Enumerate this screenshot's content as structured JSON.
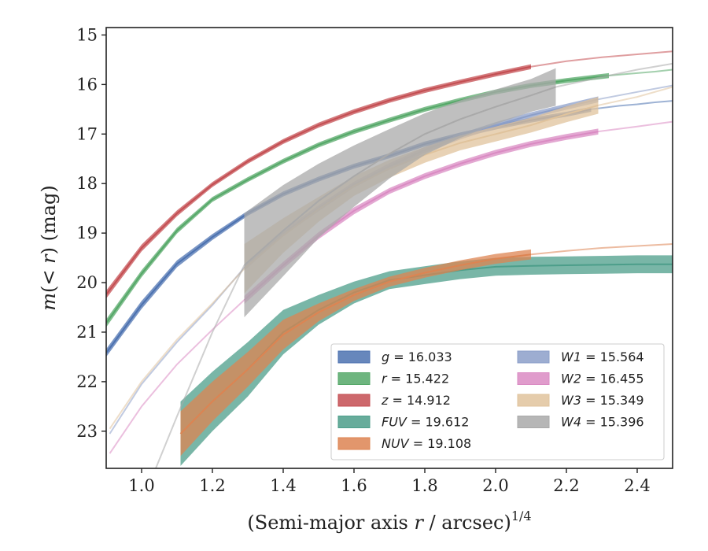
{
  "chart_data": {
    "type": "line",
    "xlabel": "(Semi-major axis r / arcsec)",
    "xlabel_parts": {
      "prefix": "(Semi-major axis ",
      "var": "r",
      "suffix": " / arcsec)",
      "sup": "1/4"
    },
    "ylabel": "m(< r) (mag)",
    "ylabel_parts": {
      "m": "m",
      "paren_open": "(",
      "lt": "< ",
      "r": "r",
      "paren_close": ")",
      "unit": " (mag)"
    },
    "xlim": [
      0.9,
      2.5
    ],
    "ylim": [
      23.75,
      14.85
    ],
    "y_inverted": true,
    "grid": false,
    "legend_placement": "lower-right",
    "x_ticks": [
      "1.0",
      "1.2",
      "1.4",
      "1.6",
      "1.8",
      "2.0",
      "2.2",
      "2.4"
    ],
    "x_tick_values": [
      1.0,
      1.2,
      1.4,
      1.6,
      1.8,
      2.0,
      2.2,
      2.4
    ],
    "y_ticks": [
      "15",
      "16",
      "17",
      "18",
      "19",
      "20",
      "21",
      "22",
      "23"
    ],
    "y_tick_values": [
      15,
      16,
      17,
      18,
      19,
      20,
      21,
      22,
      23
    ],
    "series": [
      {
        "name": "g",
        "legend_value": "16.033",
        "color": "#4c72b0",
        "x": [
          0.9,
          1.0,
          1.1,
          1.2,
          1.3,
          1.4,
          1.5,
          1.6,
          1.7,
          1.8,
          1.9,
          2.0,
          2.1,
          2.2,
          2.27
        ],
        "y": [
          21.42,
          20.45,
          19.62,
          19.08,
          18.6,
          18.21,
          17.91,
          17.65,
          17.44,
          17.2,
          17.02,
          16.86,
          16.72,
          16.6,
          16.5
        ],
        "ext_x": [
          2.27,
          2.35,
          2.4,
          2.45,
          2.5
        ],
        "ext_y": [
          16.5,
          16.43,
          16.4,
          16.36,
          16.33
        ],
        "band": [
          0.08,
          0.08,
          0.07,
          0.06,
          0.05,
          0.05,
          0.05,
          0.05,
          0.05,
          0.05,
          0.05,
          0.05,
          0.05,
          0.05,
          0.05
        ]
      },
      {
        "name": "r",
        "legend_value": "15.422",
        "color": "#55a868",
        "x": [
          0.9,
          1.0,
          1.1,
          1.2,
          1.3,
          1.4,
          1.5,
          1.6,
          1.7,
          1.8,
          1.9,
          2.0,
          2.1,
          2.2,
          2.32
        ],
        "y": [
          20.82,
          19.82,
          18.95,
          18.32,
          17.92,
          17.55,
          17.22,
          16.95,
          16.72,
          16.5,
          16.32,
          16.15,
          16.02,
          15.92,
          15.82
        ],
        "ext_x": [
          2.32,
          2.4,
          2.45,
          2.5
        ],
        "ext_y": [
          15.82,
          15.77,
          15.74,
          15.7
        ],
        "band": [
          0.08,
          0.07,
          0.06,
          0.05,
          0.05,
          0.05,
          0.05,
          0.05,
          0.05,
          0.05,
          0.05,
          0.05,
          0.05,
          0.05,
          0.05
        ]
      },
      {
        "name": "z",
        "legend_value": "14.912",
        "color": "#c44e52",
        "x": [
          0.9,
          1.0,
          1.1,
          1.2,
          1.3,
          1.4,
          1.5,
          1.6,
          1.7,
          1.8,
          1.9,
          2.0,
          2.1
        ],
        "y": [
          20.24,
          19.3,
          18.6,
          18.02,
          17.55,
          17.15,
          16.82,
          16.55,
          16.32,
          16.12,
          15.95,
          15.79,
          15.64
        ],
        "ext_x": [
          2.1,
          2.2,
          2.3,
          2.4,
          2.5
        ],
        "ext_y": [
          15.64,
          15.53,
          15.45,
          15.39,
          15.33
        ],
        "band": [
          0.08,
          0.07,
          0.06,
          0.05,
          0.05,
          0.05,
          0.05,
          0.05,
          0.05,
          0.05,
          0.05,
          0.05,
          0.05
        ]
      },
      {
        "name": "FUV",
        "legend_value": "19.612",
        "color": "#4c9e8a",
        "x": [
          1.11,
          1.2,
          1.3,
          1.4,
          1.5,
          1.6,
          1.7,
          1.8,
          1.9,
          2.0,
          2.1,
          2.2,
          2.3,
          2.4,
          2.5
        ],
        "y": [
          23.05,
          22.4,
          21.75,
          21.0,
          20.55,
          20.2,
          19.95,
          19.85,
          19.75,
          19.68,
          19.66,
          19.65,
          19.64,
          19.63,
          19.63
        ],
        "band": [
          0.65,
          0.6,
          0.55,
          0.45,
          0.3,
          0.22,
          0.18,
          0.18,
          0.18,
          0.18,
          0.18,
          0.18,
          0.18,
          0.18,
          0.18
        ]
      },
      {
        "name": "NUV",
        "legend_value": "19.108",
        "color": "#dd8452",
        "x": [
          1.11,
          1.2,
          1.3,
          1.4,
          1.5,
          1.6,
          1.7,
          1.8,
          1.9,
          2.0,
          2.1
        ],
        "y": [
          23.05,
          22.4,
          21.75,
          21.05,
          20.6,
          20.25,
          19.98,
          19.8,
          19.65,
          19.52,
          19.43
        ],
        "ext_x": [
          2.1,
          2.2,
          2.3,
          2.4,
          2.5
        ],
        "ext_y": [
          19.43,
          19.36,
          19.3,
          19.26,
          19.22
        ],
        "band": [
          0.45,
          0.4,
          0.35,
          0.3,
          0.18,
          0.12,
          0.1,
          0.1,
          0.1,
          0.1,
          0.1
        ]
      },
      {
        "name": "W1",
        "legend_value": "15.564",
        "color": "#8c9fc9",
        "x": [
          1.29,
          1.4,
          1.5,
          1.6,
          1.7,
          1.8,
          1.9,
          2.0,
          2.1,
          2.2,
          2.29
        ],
        "y": [
          19.7,
          19.0,
          18.5,
          18.02,
          17.65,
          17.32,
          17.05,
          16.82,
          16.62,
          16.45,
          16.3
        ],
        "ext_x": [
          0.91,
          1.0,
          1.1,
          1.2,
          1.29
        ],
        "ext_y": [
          23.05,
          22.05,
          21.2,
          20.45,
          19.7
        ],
        "ext2_x": [
          2.29,
          2.4,
          2.5
        ],
        "ext2_y": [
          16.3,
          16.15,
          16.02
        ],
        "band": [
          0.06,
          0.06,
          0.06,
          0.06,
          0.06,
          0.06,
          0.06,
          0.06,
          0.06,
          0.06,
          0.06
        ]
      },
      {
        "name": "W2",
        "legend_value": "16.455",
        "color": "#da8bc3",
        "x": [
          1.29,
          1.4,
          1.5,
          1.6,
          1.7,
          1.8,
          1.9,
          2.0,
          2.1,
          2.2,
          2.29
        ],
        "y": [
          20.35,
          19.65,
          19.05,
          18.55,
          18.15,
          17.85,
          17.6,
          17.38,
          17.2,
          17.06,
          16.95
        ],
        "ext_x": [
          0.91,
          1.0,
          1.1,
          1.2,
          1.29
        ],
        "ext_y": [
          23.45,
          22.5,
          21.65,
          20.95,
          20.35
        ],
        "ext2_x": [
          2.29,
          2.4,
          2.5
        ],
        "ext2_y": [
          16.95,
          16.85,
          16.75
        ],
        "band": [
          0.08,
          0.07,
          0.07,
          0.07,
          0.06,
          0.06,
          0.06,
          0.06,
          0.06,
          0.06,
          0.06
        ]
      },
      {
        "name": "W3",
        "legend_value": "15.349",
        "color": "#e0c39c",
        "x": [
          1.29,
          1.4,
          1.5,
          1.6,
          1.7,
          1.8,
          1.9,
          2.0,
          2.1,
          2.2,
          2.29
        ],
        "y": [
          19.72,
          19.05,
          18.52,
          18.05,
          17.7,
          17.42,
          17.18,
          17.0,
          16.82,
          16.6,
          16.42
        ],
        "ext_x": [
          0.91,
          1.0,
          1.1,
          1.2,
          1.29
        ],
        "ext_y": [
          22.95,
          22.0,
          21.15,
          20.42,
          19.72
        ],
        "ext2_x": [
          2.29,
          2.4,
          2.5
        ],
        "ext2_y": [
          16.42,
          16.25,
          16.05
        ],
        "band": [
          0.5,
          0.35,
          0.25,
          0.2,
          0.18,
          0.16,
          0.15,
          0.15,
          0.15,
          0.16,
          0.17
        ]
      },
      {
        "name": "W4",
        "legend_value": "15.396",
        "color": "#a9a9a9",
        "x": [
          1.29,
          1.4,
          1.5,
          1.6,
          1.7,
          1.8,
          1.9,
          2.0,
          2.1,
          2.17
        ],
        "y": [
          19.65,
          18.95,
          18.35,
          17.85,
          17.4,
          17.0,
          16.7,
          16.45,
          16.22,
          16.05
        ],
        "ext_x": [
          1.04,
          1.1,
          1.2,
          1.29
        ],
        "ext_y": [
          23.75,
          22.7,
          21.0,
          19.65
        ],
        "ext2_x": [
          2.17,
          2.3,
          2.4,
          2.5
        ],
        "ext2_y": [
          16.05,
          15.85,
          15.7,
          15.58
        ],
        "band": [
          1.05,
          0.92,
          0.75,
          0.62,
          0.5,
          0.42,
          0.38,
          0.35,
          0.33,
          0.38
        ]
      }
    ]
  }
}
